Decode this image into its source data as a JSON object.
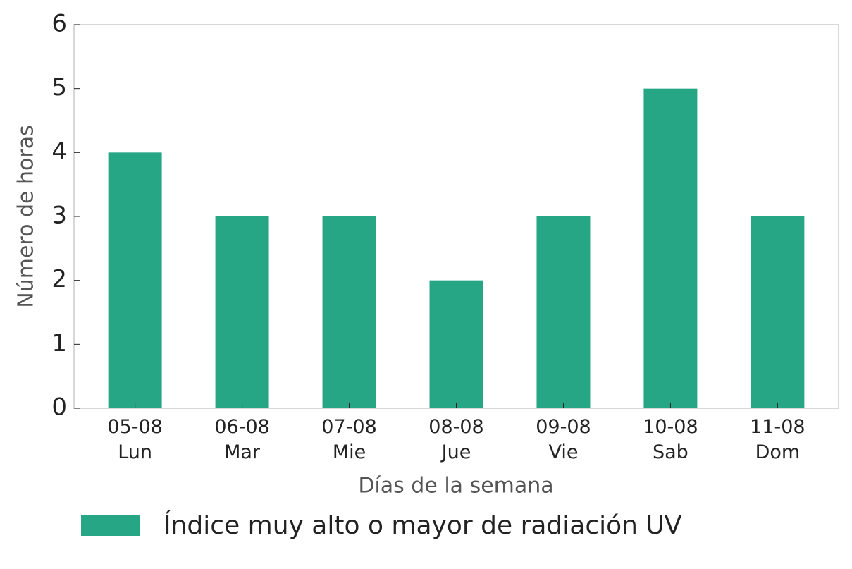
{
  "chart_data": {
    "type": "bar",
    "x_label": "Días de la semana",
    "y_label": "Número de horas",
    "categories": [
      "05-08\nLun",
      "06-08\nMar",
      "07-08\nMie",
      "08-08\nJue",
      "09-08\nVie",
      "10-08\nSab",
      "11-08\nDom"
    ],
    "series": [
      {
        "name": "Índice muy alto o mayor de radiación UV",
        "color": "#27a685",
        "values": [
          4,
          3,
          3,
          2,
          3,
          5,
          3
        ]
      }
    ],
    "ylim": [
      0,
      6
    ],
    "yticks": [
      0,
      1,
      2,
      3,
      4,
      5,
      6
    ],
    "grid": false,
    "legend": "bottom"
  }
}
